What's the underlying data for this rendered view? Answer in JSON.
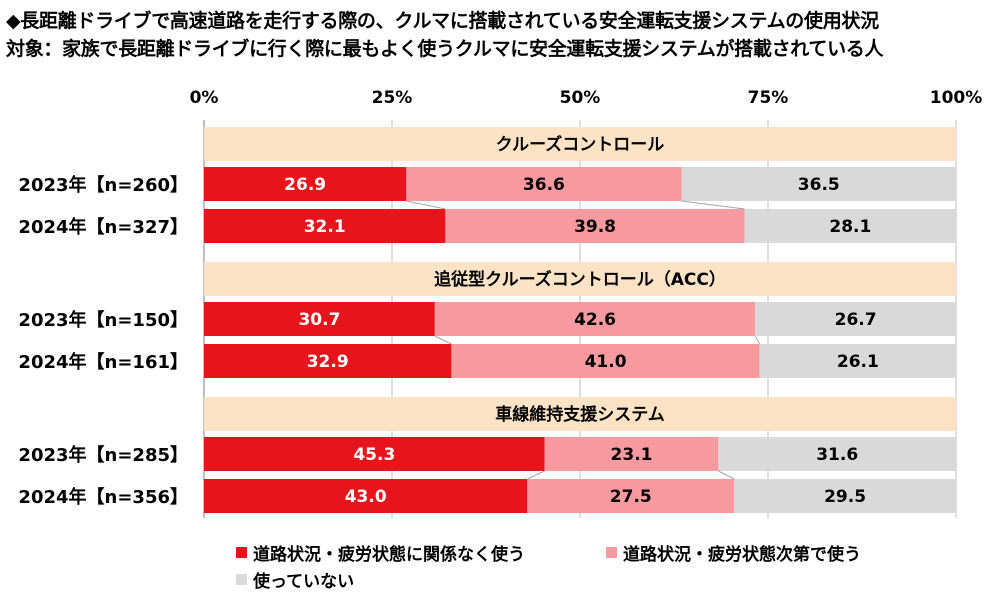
{
  "header": {
    "title": "◆長距離ドライブで高速道路を走行する際の、クルマに搭載されている安全運転支援システムの使用状況",
    "subtitle": "対象：家族で長距離ドライブに行く際に最もよく使うクルマに安全運転支援システムが搭載されている人"
  },
  "colors": {
    "red": "#e8141c",
    "pink": "#f79aa0",
    "gray": "#d9d9d9",
    "group_bg": "#fde3c5"
  },
  "chart_data": {
    "type": "bar",
    "orientation": "horizontal-stacked-100",
    "x_ticks": [
      "0%",
      "25%",
      "50%",
      "75%",
      "100%"
    ],
    "xlim": [
      0,
      100
    ],
    "legend": [
      "道路状況・疲労状態に関係なく使う",
      "道路状況・疲労状態次第で使う",
      "使っていない"
    ],
    "legend_placement": "bottom",
    "groups": [
      {
        "name": "クルーズコントロール",
        "rows": [
          {
            "label": "2023年【n=260】",
            "values": [
              26.9,
              36.6,
              36.5
            ],
            "value_labels": [
              "26.9",
              "36.6",
              "36.5"
            ]
          },
          {
            "label": "2024年【n=327】",
            "values": [
              32.1,
              39.8,
              28.1
            ],
            "value_labels": [
              "32.1",
              "39.8",
              "28.1"
            ]
          }
        ]
      },
      {
        "name": "追従型クルーズコントロール（ACC）",
        "rows": [
          {
            "label": "2023年【n=150】",
            "values": [
              30.7,
              42.6,
              26.7
            ],
            "value_labels": [
              "30.7",
              "42.6",
              "26.7"
            ]
          },
          {
            "label": "2024年【n=161】",
            "values": [
              32.9,
              41.0,
              26.1
            ],
            "value_labels": [
              "32.9",
              "41.0",
              "26.1"
            ]
          }
        ]
      },
      {
        "name": "車線維持支援システム",
        "rows": [
          {
            "label": "2023年【n=285】",
            "values": [
              45.3,
              23.1,
              31.6
            ],
            "value_labels": [
              "45.3",
              "23.1",
              "31.6"
            ]
          },
          {
            "label": "2024年【n=356】",
            "values": [
              43.0,
              27.5,
              29.5
            ],
            "value_labels": [
              "43.0",
              "27.5",
              "29.5"
            ]
          }
        ]
      }
    ]
  }
}
